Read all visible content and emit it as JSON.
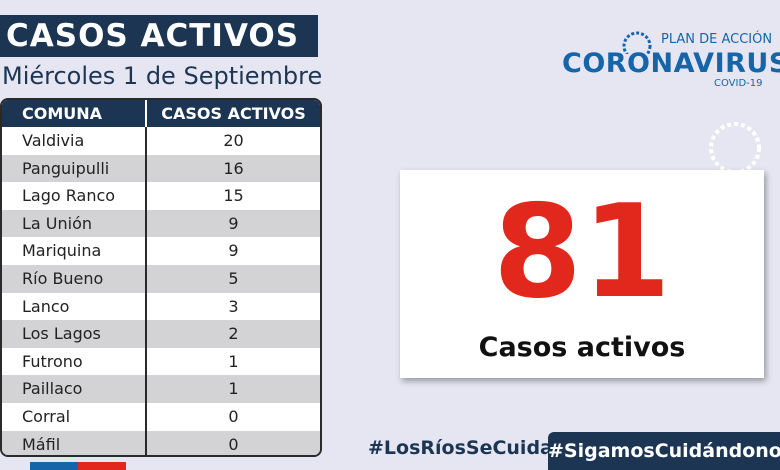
{
  "header": {
    "title": "CASOS ACTIVOS",
    "date": "Miércoles 1 de Septiembre"
  },
  "logo": {
    "top": "PLAN DE ACCIÓN",
    "main": "CORONAVIRUS",
    "sub": "COVID-19"
  },
  "table": {
    "columns": [
      "COMUNA",
      "CASOS ACTIVOS"
    ],
    "rows": [
      [
        "Valdivia",
        "20"
      ],
      [
        "Panguipulli",
        "16"
      ],
      [
        "Lago Ranco",
        "15"
      ],
      [
        "La Unión",
        "9"
      ],
      [
        "Mariquina",
        "9"
      ],
      [
        "Río Bueno",
        "5"
      ],
      [
        "Lanco",
        "3"
      ],
      [
        "Los Lagos",
        "2"
      ],
      [
        "Futrono",
        "1"
      ],
      [
        "Paillaco",
        "1"
      ],
      [
        "Corral",
        "0"
      ],
      [
        "Máfil",
        "0"
      ]
    ]
  },
  "total": {
    "value": "81",
    "label": "Casos activos"
  },
  "hashtags": [
    "#LosRíosSeCuida",
    "#SigamosCuidándonos"
  ]
}
